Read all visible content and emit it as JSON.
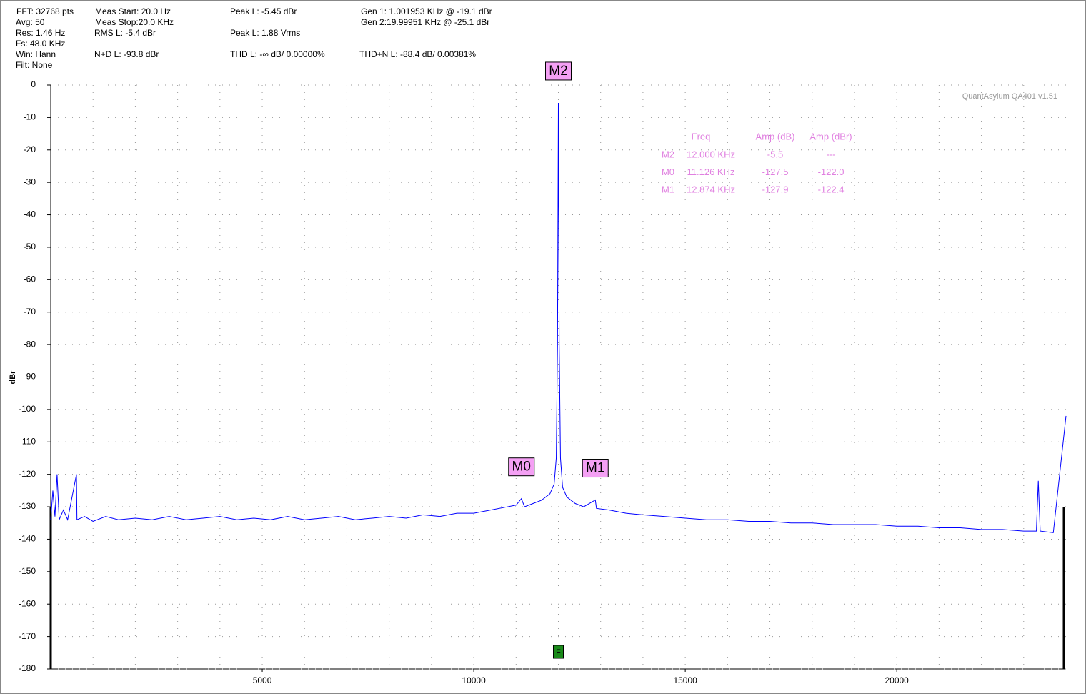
{
  "header": {
    "items": [
      "FFT: 32768 pts",
      "Avg: 50",
      "Res: 1.46 Hz",
      "Fs: 48.0 KHz",
      "Win: Hann",
      "Filt: None",
      "Meas Start: 20.0 Hz",
      "Meas Stop:20.0 KHz",
      "RMS L: -5.4 dBr",
      "N+D L: -93.8 dBr",
      "Peak L: -5.45 dBr",
      "Peak L: 1.88 Vrms",
      "THD L: -∞ dB/ 0.00000%",
      "Gen 1: 1.001953 KHz @ -19.1  dBr",
      "Gen 2:19.99951 KHz @ -25.1  dBr",
      "THD+N L: -88.4 dB/ 0.00381%"
    ]
  },
  "chart_data": {
    "type": "line",
    "ylabel": "dBr",
    "watermark": "QuantAsylum QA401 v1.51",
    "xlim": [
      0,
      24000
    ],
    "ylim": [
      -180,
      0
    ],
    "xticks": [
      5000,
      10000,
      15000,
      20000
    ],
    "xgrid": [
      1000,
      2000,
      3000,
      4000,
      5000,
      6000,
      7000,
      8000,
      9000,
      10000,
      11000,
      12000,
      13000,
      14000,
      15000,
      16000,
      17000,
      18000,
      19000,
      20000,
      21000,
      22000,
      23000
    ],
    "yticks": [
      0,
      -10,
      -20,
      -30,
      -40,
      -50,
      -60,
      -70,
      -80,
      -90,
      -100,
      -110,
      -120,
      -130,
      -140,
      -150,
      -160,
      -170,
      -180
    ],
    "grid": true,
    "x": [
      0,
      50,
      100,
      150,
      200,
      300,
      400,
      608,
      620,
      800,
      1000,
      1300,
      1600,
      2000,
      2400,
      2800,
      3200,
      3600,
      4000,
      4400,
      4800,
      5200,
      5600,
      6000,
      6400,
      6800,
      7200,
      7600,
      8000,
      8400,
      8800,
      9200,
      9600,
      10000,
      10400,
      10800,
      11000,
      11126,
      11200,
      11400,
      11600,
      11800,
      11900,
      11950,
      11980,
      12000,
      12020,
      12050,
      12100,
      12200,
      12400,
      12600,
      12874,
      12900,
      13200,
      13600,
      14000,
      14500,
      15000,
      15500,
      16000,
      16500,
      17000,
      17500,
      18000,
      18500,
      19000,
      19500,
      20000,
      20500,
      21000,
      21500,
      22000,
      22500,
      23000,
      23300,
      23345,
      23390,
      23700,
      24000
    ],
    "series": [
      {
        "name": "L",
        "color": "#0000ff",
        "values": [
          -134,
          -125,
          -133,
          -120,
          -134,
          -131,
          -134,
          -120,
          -134,
          -133,
          -134.5,
          -133,
          -134,
          -133.5,
          -134,
          -133,
          -134,
          -133.5,
          -133,
          -134,
          -133.5,
          -134,
          -133,
          -134,
          -133.5,
          -133,
          -134,
          -133.5,
          -133,
          -133.5,
          -132.5,
          -133,
          -132,
          -132,
          -131,
          -130,
          -129.5,
          -127.5,
          -130,
          -129,
          -128,
          -126,
          -123,
          -115,
          -80,
          -5.5,
          -80,
          -115,
          -124,
          -127,
          -129,
          -130,
          -127.9,
          -130.5,
          -131,
          -132,
          -132.5,
          -133,
          -133.5,
          -134,
          -134,
          -134.5,
          -134.5,
          -135,
          -135,
          -135.5,
          -135.5,
          -135.5,
          -136,
          -136,
          -136.5,
          -136.5,
          -137,
          -137,
          -137.5,
          -137.5,
          -122,
          -137.5,
          -138,
          -102
        ]
      }
    ],
    "markers": [
      {
        "name": "M2",
        "x": 12000,
        "y": -5.5
      },
      {
        "name": "M0",
        "x": 11126,
        "y": -127.5
      },
      {
        "name": "M1",
        "x": 12874,
        "y": -127.9
      }
    ],
    "f_marker": {
      "label": "F",
      "x": 12000
    },
    "marker_table": {
      "columns": [
        "Freq",
        "Amp (dB)",
        "Amp (dBr)"
      ],
      "rows": [
        [
          "M2",
          "12.000 KHz",
          "-5.5",
          "---"
        ],
        [
          "M0",
          "11.126 KHz",
          "-127.5",
          "-122.0"
        ],
        [
          "M1",
          "12.874 KHz",
          "-127.9",
          "-122.4"
        ]
      ]
    }
  }
}
